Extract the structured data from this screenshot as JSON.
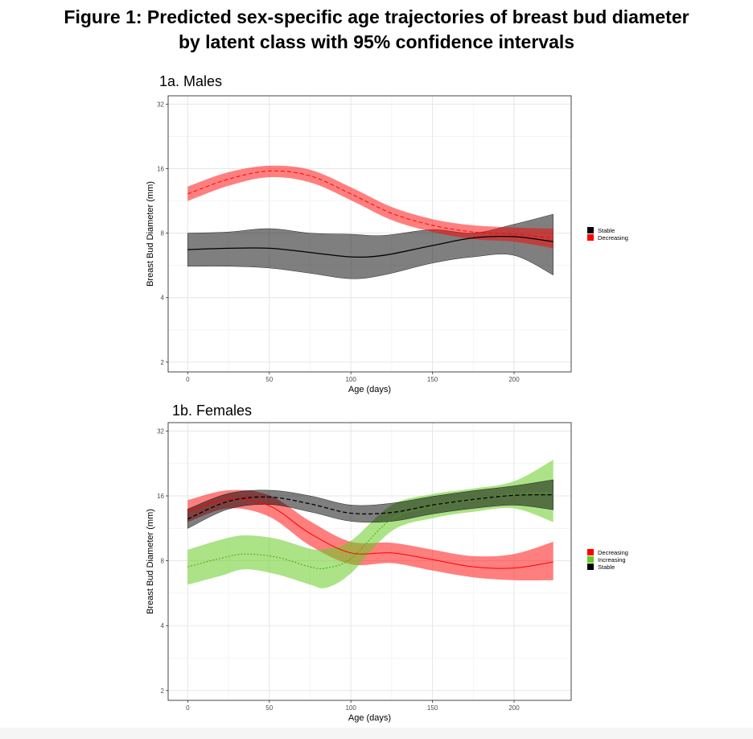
{
  "figure_title": {
    "line1": "Figure 1: Predicted sex-specific age trajectories of breast bud diameter",
    "line2": "by latent class with 95% confidence intervals"
  },
  "chart_data": [
    {
      "type": "line",
      "title": "1a. Males",
      "xlabel": "Age (days)",
      "ylabel": "Breast Bud Diameter (mm)",
      "y_scale": "log2",
      "xlim": [
        -12,
        235
      ],
      "ylim": [
        1.8,
        35
      ],
      "x_ticks": [
        0,
        50,
        100,
        150,
        200
      ],
      "y_ticks": [
        2,
        4,
        8,
        16,
        32
      ],
      "grid": true,
      "legend_position": "right",
      "legend": [
        {
          "label": "Stable",
          "color": "#000000"
        },
        {
          "label": "Decreasing",
          "color": "#ff0000"
        }
      ],
      "series": [
        {
          "name": "Stable",
          "color": "#000000",
          "line_style": "solid",
          "x": [
            0,
            25,
            50,
            75,
            100,
            120,
            150,
            175,
            200,
            224
          ],
          "y": [
            6.7,
            6.8,
            6.8,
            6.5,
            6.2,
            6.3,
            7.0,
            7.6,
            7.7,
            7.3
          ],
          "lower": [
            5.6,
            5.6,
            5.5,
            5.2,
            4.9,
            5.1,
            5.8,
            6.2,
            6.3,
            5.1
          ],
          "upper": [
            8.0,
            8.1,
            8.4,
            8.0,
            7.9,
            7.8,
            8.3,
            8.0,
            8.8,
            9.8
          ]
        },
        {
          "name": "Decreasing",
          "color": "#ff0000",
          "line_style": "dashed",
          "x": [
            0,
            25,
            50,
            75,
            100,
            125,
            150,
            175,
            200,
            224
          ],
          "y": [
            12.2,
            14.3,
            15.6,
            14.8,
            12.2,
            9.9,
            8.7,
            8.1,
            7.9,
            7.6
          ],
          "lower": [
            11.3,
            13.3,
            14.6,
            13.8,
            11.4,
            9.2,
            8.1,
            7.5,
            7.3,
            6.8
          ],
          "upper": [
            13.2,
            15.4,
            16.5,
            15.8,
            13.1,
            10.6,
            9.3,
            8.7,
            8.5,
            8.4
          ]
        }
      ]
    },
    {
      "type": "line",
      "title": "1b. Females",
      "xlabel": "Age (days)",
      "ylabel": "Breast Bud Diameter (mm)",
      "y_scale": "log2",
      "xlim": [
        -12,
        235
      ],
      "ylim": [
        1.8,
        35
      ],
      "x_ticks": [
        0,
        50,
        100,
        150,
        200
      ],
      "y_ticks": [
        2,
        4,
        8,
        16,
        32
      ],
      "grid": true,
      "legend_position": "right",
      "legend": [
        {
          "label": "Decreasing",
          "color": "#ff0000"
        },
        {
          "label": "Increasing",
          "color": "#66cc22"
        },
        {
          "label": "Stable",
          "color": "#000000"
        }
      ],
      "series": [
        {
          "name": "Decreasing",
          "color": "#ff0000",
          "line_style": "solid",
          "x": [
            0,
            25,
            50,
            75,
            100,
            125,
            150,
            175,
            200,
            224
          ],
          "y": [
            13.5,
            15.5,
            14.4,
            10.7,
            8.7,
            8.7,
            8.1,
            7.5,
            7.4,
            7.9
          ],
          "lower": [
            12.1,
            14.0,
            12.8,
            9.4,
            7.7,
            7.8,
            7.2,
            6.7,
            6.5,
            6.5
          ],
          "upper": [
            15.3,
            17.0,
            16.1,
            12.2,
            9.8,
            9.7,
            9.0,
            8.4,
            8.6,
            9.8
          ]
        },
        {
          "name": "Increasing",
          "color": "#66cc22",
          "line_style": "dotted",
          "x": [
            0,
            20,
            35,
            55,
            75,
            85,
            100,
            125,
            150,
            175,
            200,
            224
          ],
          "y": [
            7.5,
            8.2,
            8.6,
            8.3,
            7.5,
            7.4,
            8.2,
            12.5,
            14.3,
            15.3,
            16.3,
            16.5
          ],
          "lower": [
            6.2,
            6.8,
            7.3,
            6.9,
            6.2,
            6.0,
            7.0,
            11.0,
            12.6,
            13.5,
            14.0,
            12.1
          ],
          "upper": [
            9.0,
            10.0,
            10.5,
            10.1,
            9.1,
            9.1,
            9.9,
            14.5,
            16.3,
            17.3,
            18.7,
            23.5
          ]
        },
        {
          "name": "Stable",
          "color": "#000000",
          "line_style": "dashed",
          "x": [
            0,
            25,
            50,
            75,
            100,
            125,
            150,
            175,
            200,
            224
          ],
          "y": [
            12.5,
            15.1,
            15.8,
            14.7,
            13.3,
            13.4,
            14.5,
            15.4,
            16.1,
            16.2
          ],
          "lower": [
            11.3,
            13.9,
            14.6,
            13.5,
            12.2,
            12.2,
            13.2,
            14.0,
            14.5,
            13.8
          ],
          "upper": [
            13.9,
            16.4,
            17.0,
            16.0,
            14.5,
            14.8,
            15.9,
            16.9,
            17.8,
            19.0
          ]
        }
      ]
    }
  ]
}
